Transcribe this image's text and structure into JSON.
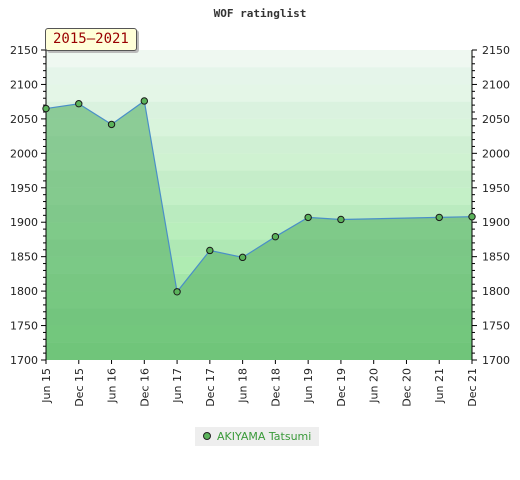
{
  "chart_data": {
    "type": "area",
    "title": "WOF ratinglist",
    "period_label": "2015—2021",
    "ylim": [
      1700,
      2150
    ],
    "y_ticks": [
      1700,
      1750,
      1800,
      1850,
      1900,
      1950,
      2000,
      2050,
      2100,
      2150
    ],
    "x_ticks": [
      "Jun 15",
      "Dec 15",
      "Jun 16",
      "Dec 16",
      "Jun 17",
      "Dec 17",
      "Jun 18",
      "Dec 18",
      "Jun 19",
      "Dec 19",
      "Jun 20",
      "Dec 20",
      "Jun 21",
      "Dec 21"
    ],
    "xlabel": "",
    "ylabel": "",
    "grid": true,
    "legend_position": "bottom-center",
    "series": [
      {
        "name": "AKIYAMA Tatsumi",
        "points": [
          {
            "x": "Jun 15",
            "y": 2065
          },
          {
            "x": "Dec 15",
            "y": 2072
          },
          {
            "x": "Jun 16",
            "y": 2042
          },
          {
            "x": "Dec 16",
            "y": 2076
          },
          {
            "x": "Jun 17",
            "y": 1799
          },
          {
            "x": "Dec 17",
            "y": 1859
          },
          {
            "x": "Jun 18",
            "y": 1849
          },
          {
            "x": "Dec 18",
            "y": 1879
          },
          {
            "x": "Jun 19",
            "y": 1907
          },
          {
            "x": "Dec 19",
            "y": 1904
          },
          {
            "x": "Jun 21",
            "y": 1907
          },
          {
            "x": "Dec 21",
            "y": 1908
          }
        ]
      }
    ]
  },
  "colors": {
    "area_fill": "#5cb36a",
    "line": "#4a8fc8",
    "marker_fill": "#5bb35b",
    "legend_text": "#3a9a3a"
  }
}
